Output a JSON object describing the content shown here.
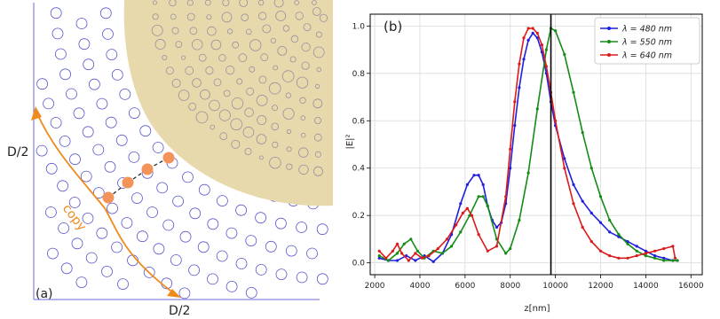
{
  "panel_a": {
    "label": "(a)",
    "left_axis_label": "D/2",
    "bottom_axis_label": "D/2",
    "copy_label": "copy",
    "colors": {
      "circles": "#5555cc",
      "region_fill": "#e8d9ad",
      "region_circles": "#9a8f9e",
      "copy_arrow": "#ef8a1c",
      "dots": "#f2935a"
    }
  },
  "panel_b": {
    "label": "(b)",
    "vertical_line_x": 9800
  },
  "chart_data": {
    "type": "line",
    "xlabel": "z[nm]",
    "ylabel": "|E|²",
    "xlim": [
      1800,
      16500
    ],
    "ylim": [
      -0.05,
      1.05
    ],
    "xticks": [
      2000,
      4000,
      6000,
      8000,
      10000,
      12000,
      14000,
      16000
    ],
    "yticks": [
      0.0,
      0.2,
      0.4,
      0.6,
      0.8,
      1.0
    ],
    "grid": true,
    "legend_position": "top-right",
    "series": [
      {
        "name": "λ = 480 nm",
        "color": "#1f1fdd",
        "x": [
          2200,
          2600,
          3000,
          3400,
          3800,
          4200,
          4600,
          5000,
          5400,
          5800,
          6100,
          6400,
          6600,
          6800,
          7000,
          7200,
          7400,
          7600,
          7800,
          8000,
          8200,
          8400,
          8600,
          8800,
          9000,
          9200,
          9400,
          9600,
          9800,
          10000,
          10400,
          10800,
          11200,
          11600,
          12000,
          12400,
          12800,
          13200,
          13600,
          14000,
          14400,
          14800,
          15200,
          15400
        ],
        "y": [
          0.02,
          0.01,
          0.01,
          0.03,
          0.01,
          0.03,
          0.005,
          0.04,
          0.12,
          0.25,
          0.33,
          0.37,
          0.37,
          0.33,
          0.24,
          0.18,
          0.15,
          0.17,
          0.25,
          0.4,
          0.58,
          0.74,
          0.86,
          0.94,
          0.97,
          0.95,
          0.89,
          0.8,
          0.68,
          0.58,
          0.44,
          0.33,
          0.26,
          0.21,
          0.17,
          0.13,
          0.11,
          0.09,
          0.07,
          0.05,
          0.03,
          0.02,
          0.01,
          0.01
        ]
      },
      {
        "name": "λ = 550 nm",
        "color": "#158c15",
        "x": [
          2200,
          2600,
          3000,
          3300,
          3600,
          3900,
          4200,
          4600,
          5000,
          5400,
          5800,
          6200,
          6600,
          6800,
          7000,
          7400,
          7800,
          8000,
          8400,
          8800,
          9200,
          9600,
          9800,
          10000,
          10400,
          10800,
          11200,
          11600,
          12000,
          12400,
          12800,
          13200,
          13600,
          14000,
          14400,
          14800,
          15200,
          15400
        ],
        "y": [
          0.03,
          0.01,
          0.04,
          0.08,
          0.1,
          0.05,
          0.02,
          0.05,
          0.04,
          0.07,
          0.13,
          0.2,
          0.28,
          0.28,
          0.24,
          0.1,
          0.04,
          0.06,
          0.18,
          0.38,
          0.65,
          0.9,
          0.99,
          0.98,
          0.88,
          0.72,
          0.55,
          0.4,
          0.28,
          0.18,
          0.12,
          0.08,
          0.05,
          0.03,
          0.02,
          0.01,
          0.01,
          0.01
        ]
      },
      {
        "name": "λ = 640 nm",
        "color": "#dd1a1a",
        "x": [
          2200,
          2500,
          2800,
          3000,
          3200,
          3500,
          3800,
          4100,
          4400,
          4800,
          5200,
          5600,
          5900,
          6100,
          6300,
          6600,
          7000,
          7400,
          7800,
          8000,
          8200,
          8400,
          8600,
          8800,
          9000,
          9200,
          9400,
          9600,
          9800,
          10000,
          10400,
          10800,
          11200,
          11600,
          12000,
          12400,
          12800,
          13200,
          13600,
          14000,
          14400,
          14800,
          15200,
          15300
        ],
        "y": [
          0.05,
          0.02,
          0.05,
          0.08,
          0.04,
          0.01,
          0.04,
          0.02,
          0.03,
          0.06,
          0.1,
          0.16,
          0.21,
          0.23,
          0.2,
          0.12,
          0.05,
          0.07,
          0.28,
          0.48,
          0.68,
          0.84,
          0.95,
          0.99,
          0.99,
          0.97,
          0.92,
          0.83,
          0.72,
          0.6,
          0.4,
          0.25,
          0.15,
          0.09,
          0.05,
          0.03,
          0.02,
          0.02,
          0.03,
          0.04,
          0.05,
          0.06,
          0.07,
          0.02
        ]
      }
    ]
  }
}
